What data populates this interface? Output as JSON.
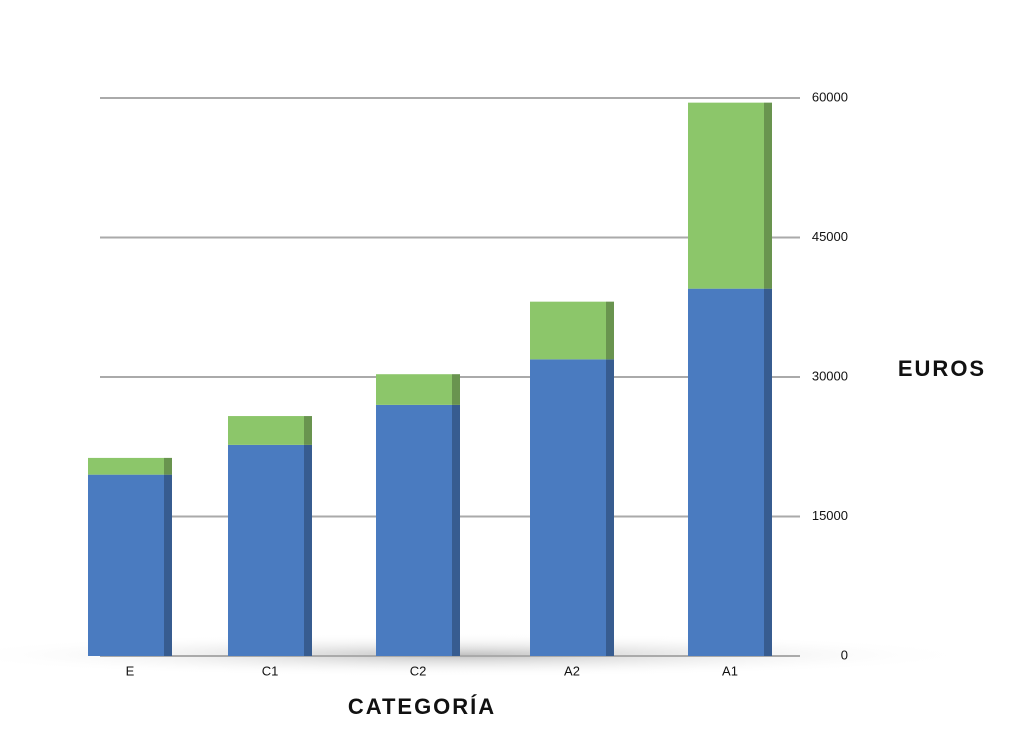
{
  "chart_data": {
    "type": "bar",
    "stacked": true,
    "categories": [
      "E",
      "C1",
      "C2",
      "A2",
      "A1"
    ],
    "series": [
      {
        "color": "#4a7bc0",
        "values": [
          19500,
          22700,
          27000,
          31900,
          39500
        ]
      },
      {
        "color": "#8cc66a",
        "values": [
          1800,
          3100,
          3300,
          6200,
          20000
        ]
      }
    ],
    "x_label": "CATEGORÍA",
    "y_label": "EUROS",
    "ylim": [
      0,
      60000
    ],
    "yticks": [
      0,
      15000,
      30000,
      45000,
      60000
    ],
    "grid": true
  }
}
